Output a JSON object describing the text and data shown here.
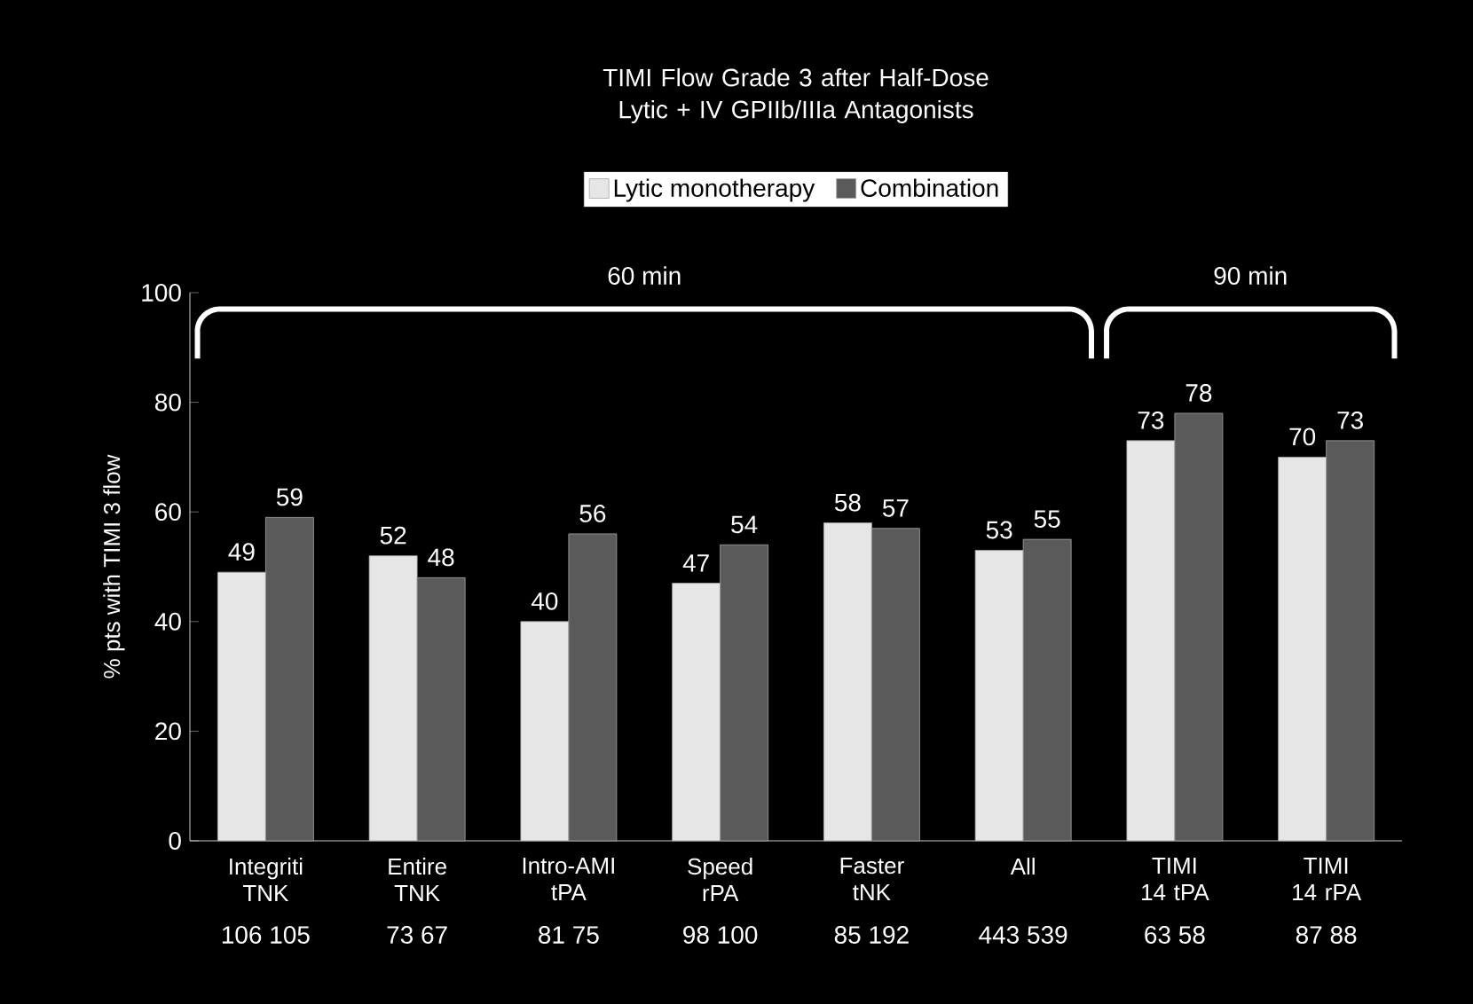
{
  "chart_data": {
    "type": "bar",
    "title": "TIMI Flow Grade 3 after Half-Dose Lytic + IV GPIIb/IIIa Antagonists",
    "ylabel": "% pts with TIMI 3 flow",
    "categories": [
      "Integriti TNK",
      "Entire TNK",
      "Intro-AMI tPA",
      "Speed rPA",
      "Faster tNK",
      "All",
      "TIMI 14 tPA",
      "TIMI 14 rPA"
    ],
    "series": [
      {
        "name": "Lytic monotherapy",
        "color": "#e6e6e6",
        "values": [
          49,
          52,
          40,
          47,
          58,
          53,
          73,
          70
        ]
      },
      {
        "name": "Combination",
        "color": "#5a5a5a",
        "values": [
          59,
          48,
          56,
          54,
          57,
          55,
          78,
          73
        ]
      }
    ],
    "ylim": [
      0,
      100
    ],
    "yticks": [
      0,
      20,
      40,
      60,
      80,
      100
    ],
    "data_labels": true,
    "legend": "top",
    "grid": false,
    "annotations": [
      "60 min",
      "90 min",
      "106 105",
      "73 67",
      "81 75",
      "98 100",
      "85 192",
      "443 539",
      "63 58",
      "87 88"
    ]
  }
}
